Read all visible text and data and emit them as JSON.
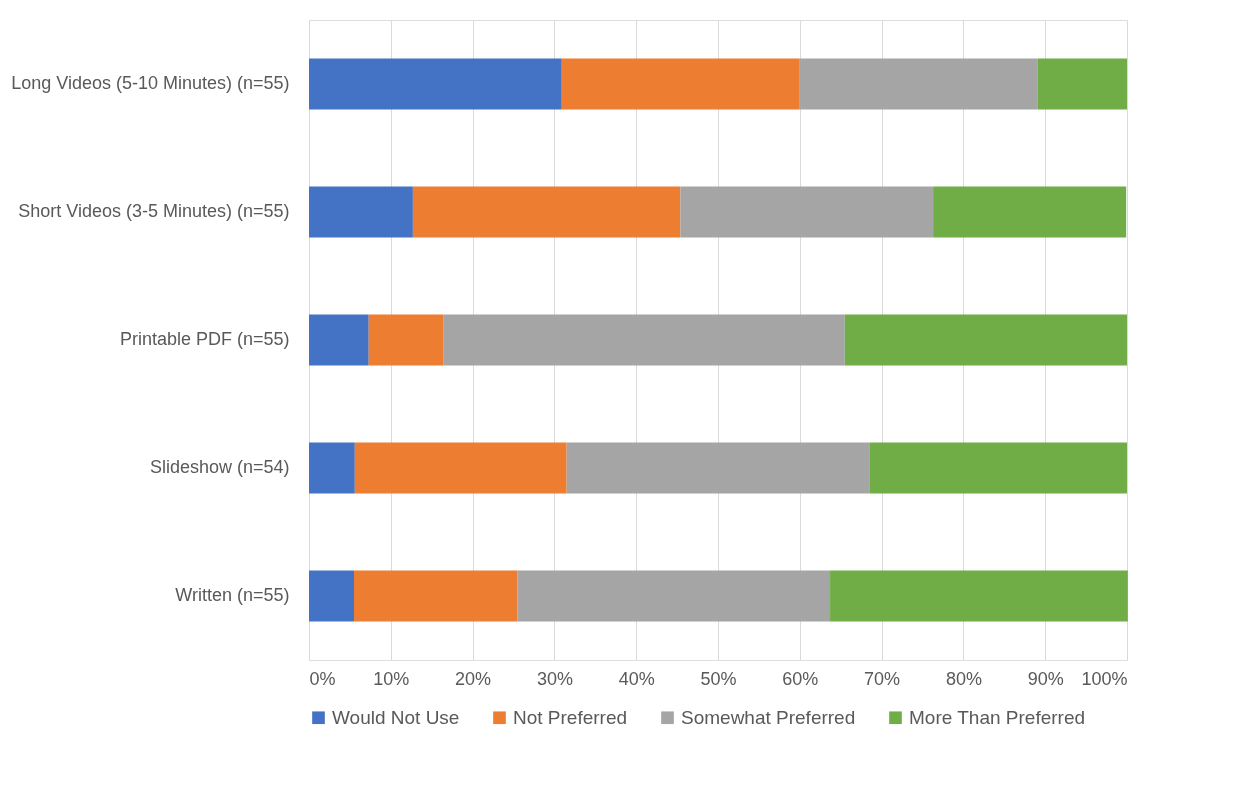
{
  "chart_data": {
    "type": "bar",
    "orientation": "horizontal",
    "stacked": true,
    "categories": [
      "Long Videos (5-10 Minutes) (n=55)",
      "Short Videos (3-5 Minutes) (n=55)",
      "Printable PDF (n=55)",
      "Slideshow (n=54)",
      "Written (n=55)"
    ],
    "series": [
      {
        "name": "Would Not Use",
        "color": "#4472c4",
        "values": [
          30.9,
          12.7,
          7.3,
          5.6,
          5.5
        ]
      },
      {
        "name": "Not Preferred",
        "color": "#ed7d31",
        "values": [
          29.1,
          32.7,
          9.1,
          25.9,
          20.0
        ]
      },
      {
        "name": "Somewhat Preferred",
        "color": "#a5a5a5",
        "values": [
          29.1,
          30.9,
          49.1,
          37.0,
          38.2
        ]
      },
      {
        "name": "More Than Preferred",
        "color": "#70ad47",
        "values": [
          10.9,
          23.6,
          34.5,
          31.5,
          36.4
        ]
      }
    ],
    "xlim": [
      0,
      100
    ],
    "xticks": [
      {
        "value": 0,
        "label": "0%"
      },
      {
        "value": 10,
        "label": "10%"
      },
      {
        "value": 20,
        "label": "20%"
      },
      {
        "value": 30,
        "label": "30%"
      },
      {
        "value": 40,
        "label": "40%"
      },
      {
        "value": 50,
        "label": "50%"
      },
      {
        "value": 60,
        "label": "60%"
      },
      {
        "value": 70,
        "label": "70%"
      },
      {
        "value": 80,
        "label": "80%"
      },
      {
        "value": 90,
        "label": "90%"
      },
      {
        "value": 100,
        "label": "100%"
      }
    ],
    "grid": "x",
    "legend": "bottom"
  }
}
